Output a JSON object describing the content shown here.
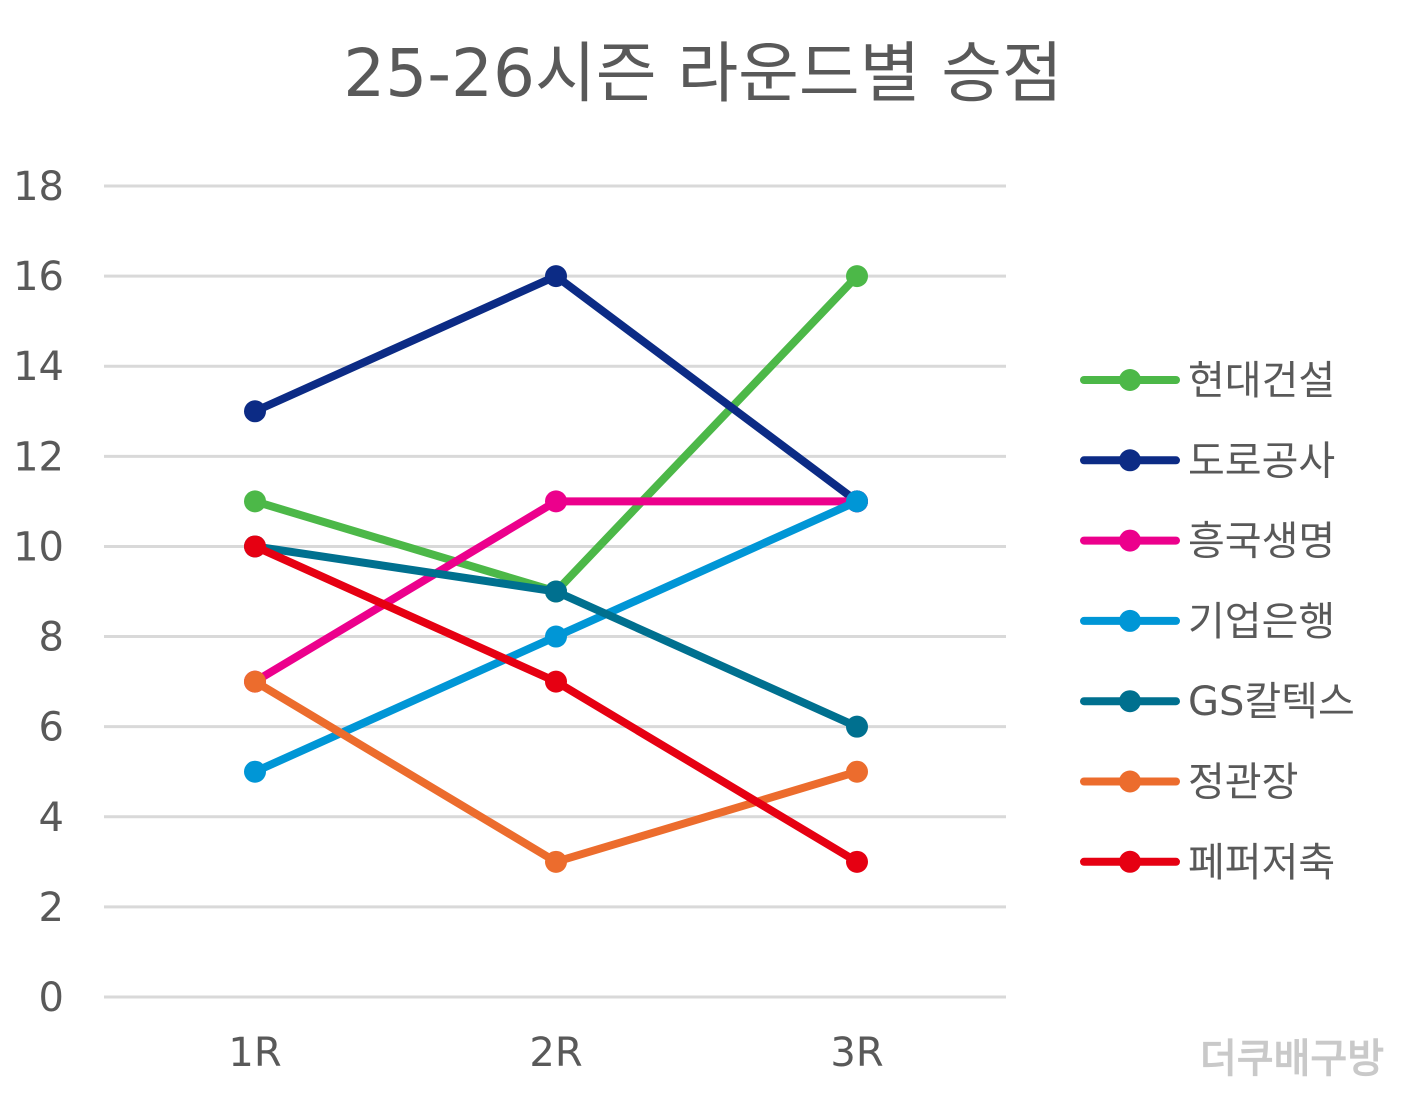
{
  "chart_data": {
    "type": "line",
    "title": "25-26시즌 라운드별 승점",
    "xlabel": "",
    "ylabel": "",
    "categories": [
      "1R",
      "2R",
      "3R"
    ],
    "ylim": [
      0,
      18
    ],
    "yticks": [
      0,
      2,
      4,
      6,
      8,
      10,
      12,
      14,
      16,
      18
    ],
    "grid": true,
    "legend": "right",
    "series": [
      {
        "name": "현대건설",
        "color": "#4cb848",
        "values": [
          11,
          9,
          16
        ]
      },
      {
        "name": "도로공사",
        "color": "#0c2b85",
        "values": [
          13,
          16,
          11
        ]
      },
      {
        "name": "흥국생명",
        "color": "#ec008c",
        "values": [
          7,
          11,
          11
        ]
      },
      {
        "name": "기업은행",
        "color": "#0096d6",
        "values": [
          5,
          8,
          11
        ]
      },
      {
        "name": "GS칼텍스",
        "color": "#00708f",
        "values": [
          10,
          9,
          6
        ]
      },
      {
        "name": "정관장",
        "color": "#ec6c2d",
        "values": [
          7,
          3,
          5
        ]
      },
      {
        "name": "페퍼저축",
        "color": "#e60012",
        "values": [
          10,
          7,
          3
        ]
      }
    ]
  },
  "watermark": "더쿠배구방"
}
